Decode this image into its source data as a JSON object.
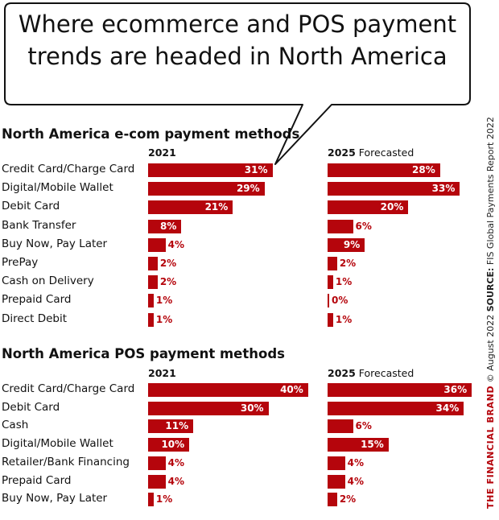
{
  "headline": [
    "Where ecommerce and POS payment",
    "trends are headed in North America"
  ],
  "side_text": {
    "brand": "THE FINANCIAL BRAND",
    "date": "© August 2022",
    "source_label": "SOURCE:",
    "source": "FIS Global Payments Report 2022"
  },
  "colors": {
    "bar": "#b5050c",
    "bar_label_inside": "#ffffff",
    "bar_label_outside": "#b5050c"
  },
  "chart_data": [
    {
      "type": "bar",
      "title": "North America e-com payment methods",
      "categories": [
        "Credit Card/Charge Card",
        "Digital/Mobile Wallet",
        "Debit Card",
        "Bank Transfer",
        "Buy Now, Pay Later",
        "PrePay",
        "Cash on Delivery",
        "Prepaid Card",
        "Direct Debit"
      ],
      "series": [
        {
          "name": "2021",
          "suffix": "",
          "values": [
            31,
            29,
            21,
            8,
            4,
            2,
            2,
            1,
            1
          ]
        },
        {
          "name": "2025",
          "suffix": "Forecasted",
          "values": [
            28,
            33,
            20,
            6,
            9,
            2,
            1,
            0,
            1
          ]
        }
      ],
      "unit": "%"
    },
    {
      "type": "bar",
      "title": "North America POS payment methods",
      "categories": [
        "Credit Card/Charge Card",
        "Debit Card",
        "Cash",
        "Digital/Mobile Wallet",
        "Retailer/Bank Financing",
        "Prepaid Card",
        "Buy Now, Pay Later"
      ],
      "series": [
        {
          "name": "2021",
          "suffix": "",
          "values": [
            40,
            30,
            11,
            10,
            4,
            4,
            1
          ]
        },
        {
          "name": "2025",
          "suffix": "Forecasted",
          "values": [
            36,
            34,
            6,
            15,
            4,
            4,
            2
          ]
        }
      ],
      "unit": "%"
    }
  ]
}
